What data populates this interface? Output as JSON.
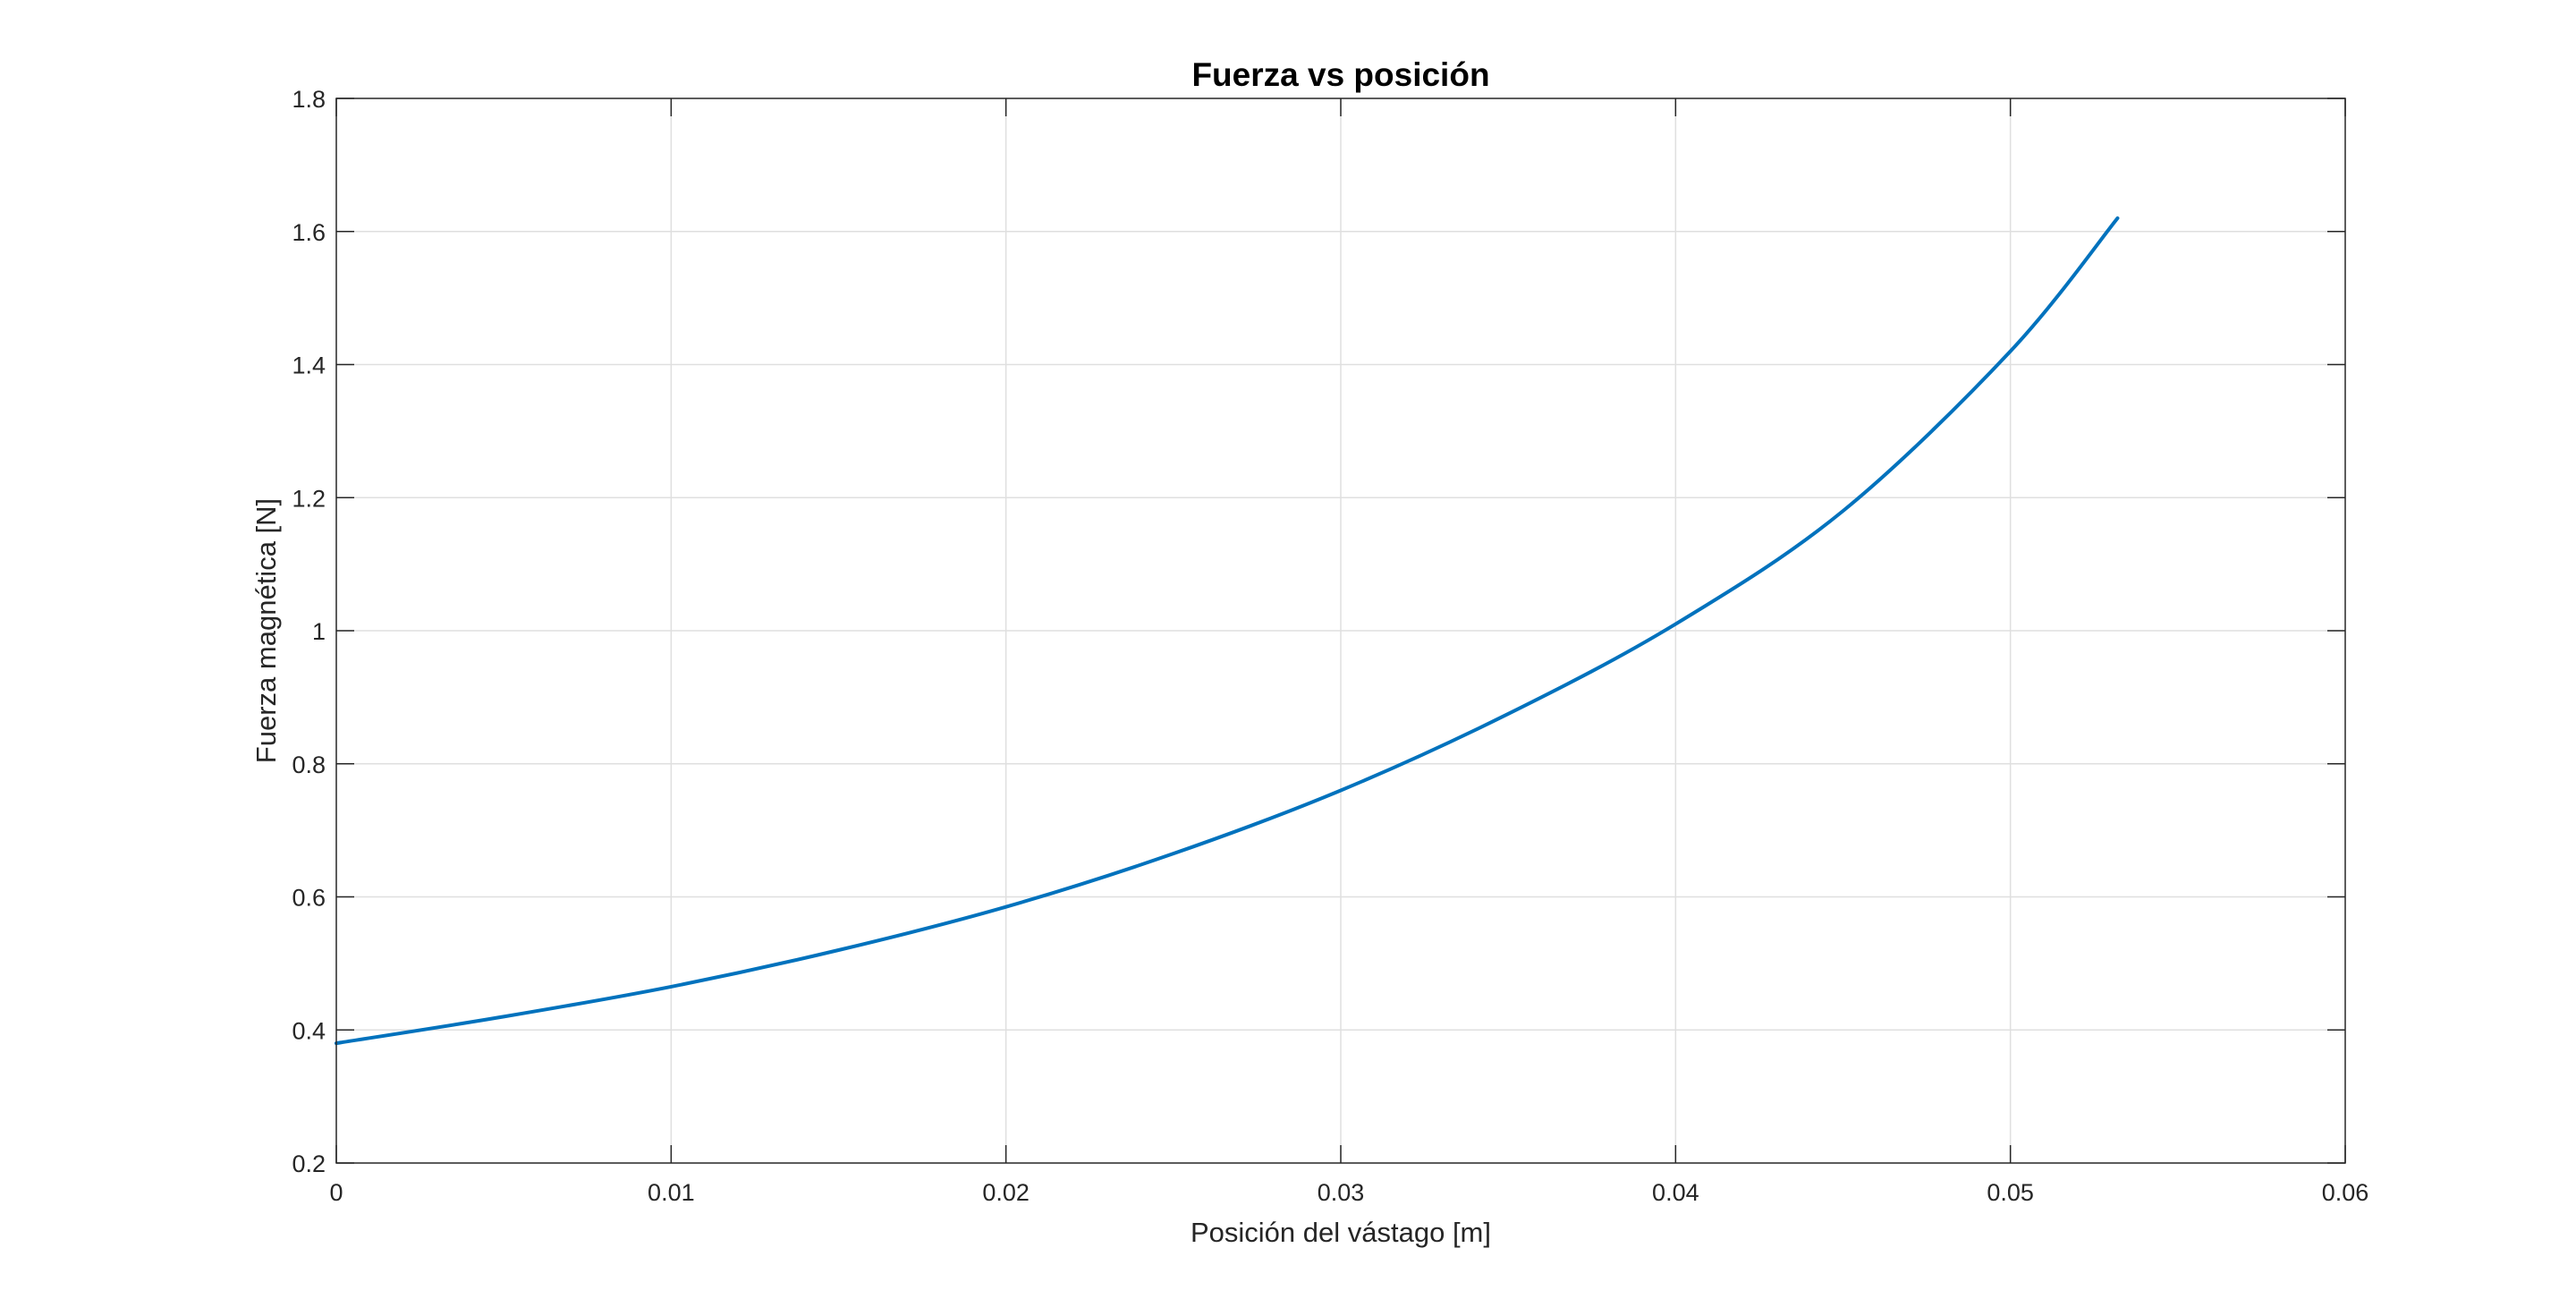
{
  "chart_data": {
    "type": "line",
    "title": "Fuerza vs posición",
    "xlabel": "Posición del vástago [m]",
    "ylabel": "Fuerza magnética [N]",
    "xlim": [
      0,
      0.06
    ],
    "ylim": [
      0.2,
      1.8
    ],
    "xticks": [
      0,
      0.01,
      0.02,
      0.03,
      0.04,
      0.05,
      0.06
    ],
    "xtick_labels": [
      "0",
      "0.01",
      "0.02",
      "0.03",
      "0.04",
      "0.05",
      "0.06"
    ],
    "yticks": [
      0.2,
      0.4,
      0.6,
      0.8,
      1.0,
      1.2,
      1.4,
      1.6,
      1.8
    ],
    "ytick_labels": [
      "0.2",
      "0.4",
      "0.6",
      "0.8",
      "1",
      "1.2",
      "1.4",
      "1.6",
      "1.8"
    ],
    "grid": true,
    "legend": false,
    "series": [
      {
        "color": "#0072bd",
        "x": [
          0,
          0.005,
          0.01,
          0.015,
          0.02,
          0.025,
          0.03,
          0.035,
          0.04,
          0.045,
          0.05,
          0.0532
        ],
        "y": [
          0.38,
          0.42,
          0.465,
          0.52,
          0.585,
          0.665,
          0.76,
          0.875,
          1.01,
          1.18,
          1.42,
          1.62
        ]
      }
    ]
  }
}
